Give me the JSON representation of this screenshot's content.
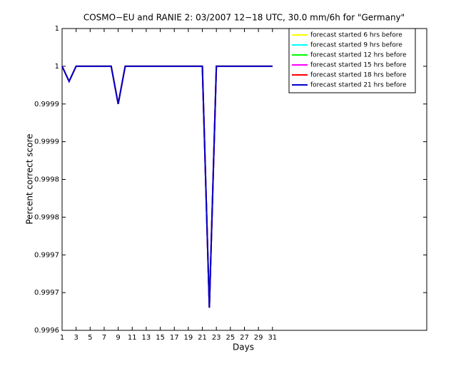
{
  "chart_data": {
    "type": "line",
    "title": "COSMO−EU and RANIE 2: 03/2007 12−18 UTC, 30.0 mm/6h for \"Germany\"",
    "x_label": "Days",
    "y_label": "Percent correct score",
    "x": [
      1,
      2,
      3,
      4,
      5,
      6,
      7,
      8,
      9,
      10,
      11,
      12,
      13,
      14,
      15,
      16,
      17,
      18,
      19,
      20,
      21,
      22,
      23,
      24,
      25,
      26,
      27,
      28,
      29,
      30,
      31
    ],
    "xlim": [
      1,
      53
    ],
    "xticks": [
      1,
      3,
      5,
      7,
      9,
      11,
      13,
      15,
      17,
      19,
      21,
      23,
      25,
      27,
      29,
      31
    ],
    "ylim": [
      0.99965,
      1.00005
    ],
    "yticks": [
      {
        "value": 0.99965,
        "label": "0.9996"
      },
      {
        "value": 0.9997,
        "label": "0.9997"
      },
      {
        "value": 0.99975,
        "label": "0.9997"
      },
      {
        "value": 0.9998,
        "label": "0.9998"
      },
      {
        "value": 0.99985,
        "label": "0.9998"
      },
      {
        "value": 0.9999,
        "label": "0.9999"
      },
      {
        "value": 0.99995,
        "label": "0.9999"
      },
      1,
      {
        "value": 1.00005,
        "label": "1"
      }
    ],
    "legend": "upper right",
    "series": [
      {
        "name": "forecast started 6 hrs before",
        "color": "#ffff00",
        "values": [
          1,
          0.99998,
          1,
          1,
          1,
          1,
          1,
          1,
          0.99995,
          1,
          1,
          1,
          1,
          1,
          1,
          1,
          1,
          1,
          1,
          1,
          1,
          0.99968,
          1,
          1,
          1,
          1,
          1,
          1,
          1,
          1,
          1
        ]
      },
      {
        "name": "forecast started 9 hrs before",
        "color": "#00ffff",
        "values": [
          1,
          0.99998,
          1,
          1,
          1,
          1,
          1,
          1,
          0.99995,
          1,
          1,
          1,
          1,
          1,
          1,
          1,
          1,
          1,
          1,
          1,
          1,
          0.99968,
          1,
          1,
          1,
          1,
          1,
          1,
          1,
          1,
          1
        ]
      },
      {
        "name": "forecast started 12 hrs before",
        "color": "#00ff00",
        "values": [
          1,
          0.99998,
          1,
          1,
          1,
          1,
          1,
          1,
          0.99995,
          1,
          1,
          1,
          1,
          1,
          1,
          1,
          1,
          1,
          1,
          1,
          1,
          0.99968,
          1,
          1,
          1,
          1,
          1,
          1,
          1,
          1,
          1
        ]
      },
      {
        "name": "forecast started 15 hrs before",
        "color": "#ff00ff",
        "values": [
          1,
          0.99998,
          1,
          1,
          1,
          1,
          1,
          1,
          0.99995,
          1,
          1,
          1,
          1,
          1,
          1,
          1,
          1,
          1,
          1,
          1,
          1,
          0.99968,
          1,
          1,
          1,
          1,
          1,
          1,
          1,
          1,
          1
        ]
      },
      {
        "name": "forecast started 18 hrs before",
        "color": "#ff0000",
        "values": [
          1,
          0.99998,
          1,
          1,
          1,
          1,
          1,
          1,
          0.99995,
          1,
          1,
          1,
          1,
          1,
          1,
          1,
          1,
          1,
          1,
          1,
          1,
          0.99968,
          1,
          1,
          1,
          1,
          1,
          1,
          1,
          1,
          1
        ]
      },
      {
        "name": "forecast started 21 hrs before",
        "color": "#0000cc",
        "values": [
          1,
          0.99998,
          1,
          1,
          1,
          1,
          1,
          1,
          0.99995,
          1,
          1,
          1,
          1,
          1,
          1,
          1,
          1,
          1,
          1,
          1,
          1,
          0.99968,
          1,
          1,
          1,
          1,
          1,
          1,
          1,
          1,
          1
        ]
      }
    ]
  }
}
